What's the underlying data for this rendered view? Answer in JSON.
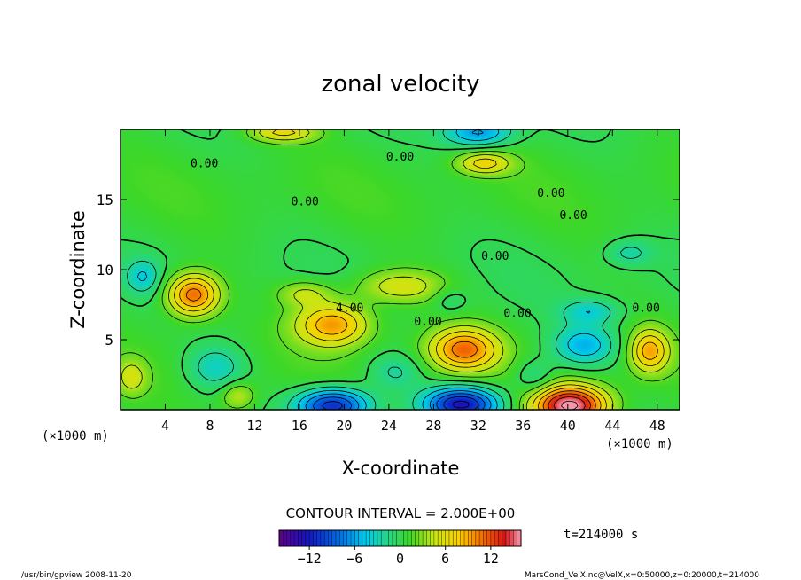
{
  "chart_data": {
    "type": "heatmap",
    "title": "zonal velocity",
    "xlabel": "X-coordinate",
    "ylabel": "Z-coordinate",
    "x_unit_label": "(×1000 m)",
    "x_unit_label_2": "(×1000 m)",
    "xlim": [
      0,
      50
    ],
    "ylim": [
      0,
      20
    ],
    "x_ticks": [
      4,
      8,
      12,
      16,
      20,
      24,
      28,
      32,
      36,
      40,
      44,
      48
    ],
    "y_ticks": [
      5,
      10,
      15
    ],
    "contour_interval_text": "CONTOUR INTERVAL = 2.000E+00",
    "time_text": "t=214000 s",
    "colorbar": {
      "min": -16,
      "max": 16,
      "tick_labels": [
        "−12",
        "−6",
        "0",
        "6",
        "12"
      ],
      "tick_values": [
        -12,
        -6,
        0,
        6,
        12
      ]
    },
    "contour_labels": [
      {
        "text": "0.00",
        "x": 7.5,
        "y": 17.3
      },
      {
        "text": "0.00",
        "x": 16.5,
        "y": 14.6
      },
      {
        "text": "0.00",
        "x": 25,
        "y": 17.8
      },
      {
        "text": "0.00",
        "x": 38.5,
        "y": 15.2
      },
      {
        "text": "0.00",
        "x": 40.5,
        "y": 13.6
      },
      {
        "text": "0.00",
        "x": 33.5,
        "y": 10.7
      },
      {
        "text": "0.00",
        "x": 27.5,
        "y": 6.0
      },
      {
        "text": "0.00",
        "x": 35.5,
        "y": 6.6
      },
      {
        "text": "0.00",
        "x": 47,
        "y": 7.0
      },
      {
        "text": "4.00",
        "x": 20.5,
        "y": 7.0
      }
    ],
    "features": [
      {
        "x": 6.5,
        "y": 8.2,
        "value": 11,
        "rx": 2.3,
        "ry": 1.5
      },
      {
        "x": 19,
        "y": 6.1,
        "value": 9,
        "rx": 3.2,
        "ry": 1.5
      },
      {
        "x": 30.7,
        "y": 4.3,
        "value": 10,
        "rx": 3.0,
        "ry": 1.5
      },
      {
        "x": 40.2,
        "y": 0.3,
        "value": 16,
        "rx": 3.2,
        "ry": 1.4
      },
      {
        "x": 47.3,
        "y": 4.2,
        "value": 8,
        "rx": 1.7,
        "ry": 1.5
      },
      {
        "x": 32.5,
        "y": 17.6,
        "value": 6,
        "rx": 2.4,
        "ry": 0.8
      },
      {
        "x": 14.5,
        "y": 19.8,
        "value": 6,
        "rx": 3.0,
        "ry": 0.7
      },
      {
        "x": 25,
        "y": 8.8,
        "value": 5,
        "rx": 4.0,
        "ry": 1.2
      },
      {
        "x": 16.5,
        "y": 8.3,
        "value": 4,
        "rx": 2.4,
        "ry": 0.9
      },
      {
        "x": 1.0,
        "y": 2.3,
        "value": 4,
        "rx": 1.3,
        "ry": 1.2
      },
      {
        "x": 10.5,
        "y": 1.0,
        "value": 4,
        "rx": 1.5,
        "ry": 1.0
      },
      {
        "x": 19,
        "y": 0.3,
        "value": -12,
        "rx": 3.2,
        "ry": 1.2
      },
      {
        "x": 30.5,
        "y": 0.4,
        "value": -13,
        "rx": 3.3,
        "ry": 1.2
      },
      {
        "x": 32,
        "y": 19.8,
        "value": -7,
        "rx": 3.0,
        "ry": 1.0
      },
      {
        "x": 41.5,
        "y": 4.6,
        "value": -6,
        "rx": 2.8,
        "ry": 1.4
      },
      {
        "x": 42,
        "y": 7.0,
        "value": -4,
        "rx": 2.6,
        "ry": 0.9
      },
      {
        "x": 8.5,
        "y": 3.0,
        "value": -4,
        "rx": 2.6,
        "ry": 1.6
      },
      {
        "x": 2.0,
        "y": 9.5,
        "value": -4,
        "rx": 1.5,
        "ry": 1.2
      },
      {
        "x": 45.5,
        "y": 11.2,
        "value": -3,
        "rx": 2.0,
        "ry": 0.9
      },
      {
        "x": 24.5,
        "y": 2.7,
        "value": -3,
        "rx": 2.4,
        "ry": 1.3
      },
      {
        "x": 37,
        "y": 2.3,
        "value": -3,
        "rx": 1.8,
        "ry": 1.3
      },
      {
        "x": 29.5,
        "y": 7.8,
        "value": -2,
        "rx": 1.6,
        "ry": 0.9
      }
    ],
    "grid": false,
    "legend": "colorbar bottom-center"
  },
  "footer": {
    "left": "/usr/bin/gpview   2008-11-20",
    "right": "MarsCond_VelX.nc@VelX,x=0:50000,z=0:20000,t=214000"
  }
}
